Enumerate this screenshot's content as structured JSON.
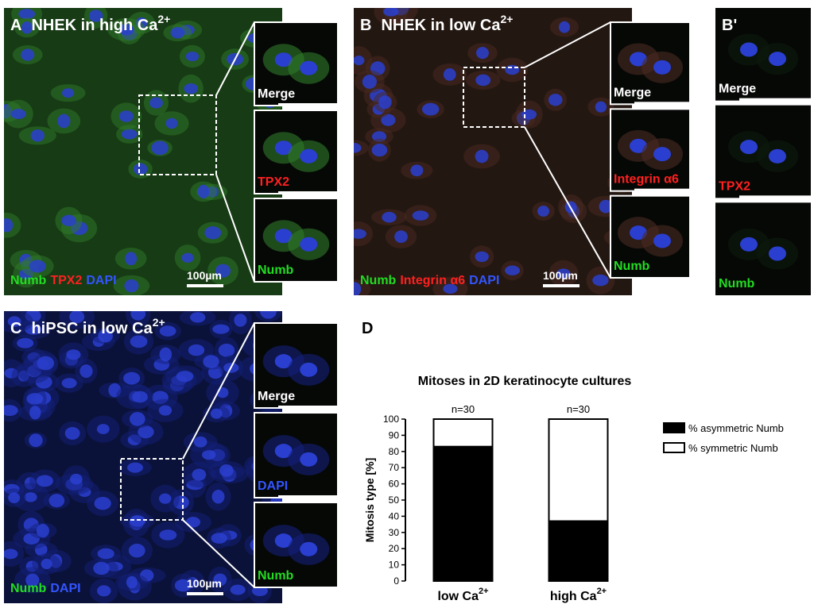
{
  "panels": [
    {
      "letter": "A",
      "title": "NHEK in high Ca",
      "title_sup": "2+",
      "tint": "#2f7a2a",
      "stains": [
        {
          "text": "Numb",
          "color": "#22dd22"
        },
        {
          "text": "TPX2",
          "color": "#ff2020"
        },
        {
          "text": "DAPI",
          "color": "#3355ff"
        }
      ],
      "scale": "100µm",
      "insets": [
        {
          "text": "Merge",
          "color": "#ffffff"
        },
        {
          "text": "TPX2",
          "color": "#ff2020"
        },
        {
          "text": "Numb",
          "color": "#22dd22"
        }
      ]
    },
    {
      "letter": "B",
      "title": "NHEK in low Ca",
      "title_sup": "2+",
      "tint": "#4a2a22",
      "stains": [
        {
          "text": "Numb",
          "color": "#22dd22"
        },
        {
          "text": "Integrin α6",
          "color": "#ff2020"
        },
        {
          "text": "DAPI",
          "color": "#3355ff"
        }
      ],
      "scale": "100µm",
      "insets": [
        {
          "text": "Merge",
          "color": "#ffffff"
        },
        {
          "text": "Integrin α6",
          "color": "#ff2020"
        },
        {
          "text": "Numb",
          "color": "#22dd22"
        }
      ]
    },
    {
      "letter": "B'",
      "tint": "#0d1a0d",
      "insets": [
        {
          "text": "Merge",
          "color": "#ffffff"
        },
        {
          "text": "TPX2",
          "color": "#ff2020"
        },
        {
          "text": "Numb",
          "color": "#22dd22"
        }
      ]
    },
    {
      "letter": "C",
      "title": "hiPSC in low Ca",
      "title_sup": "2+",
      "tint": "#14207a",
      "stains": [
        {
          "text": "Numb",
          "color": "#22dd22"
        },
        {
          "text": "DAPI",
          "color": "#3355ff"
        }
      ],
      "scale": "100µm",
      "insets": [
        {
          "text": "Merge",
          "color": "#ffffff"
        },
        {
          "text": "DAPI",
          "color": "#3355ff"
        },
        {
          "text": "Numb",
          "color": "#22dd22"
        }
      ]
    }
  ],
  "chart_data": {
    "type": "stacked_bar",
    "letter": "D",
    "title": "Mitoses in 2D keratinocyte cultures",
    "ylabel": "Mitosis type [%]",
    "categories": [
      "low Ca",
      "high Ca"
    ],
    "category_superscripts": [
      "2+",
      "2+"
    ],
    "annotations": [
      "n=30",
      "n=30"
    ],
    "series": [
      {
        "name": "% asymmetric Numb",
        "color": "#000000",
        "values": [
          83,
          37
        ]
      },
      {
        "name": "% symmetric Numb",
        "color": "#ffffff",
        "values": [
          17,
          63
        ]
      }
    ],
    "ylim": [
      0,
      100
    ],
    "yticks": [
      0,
      10,
      20,
      30,
      40,
      50,
      60,
      70,
      80,
      90,
      100
    ]
  }
}
